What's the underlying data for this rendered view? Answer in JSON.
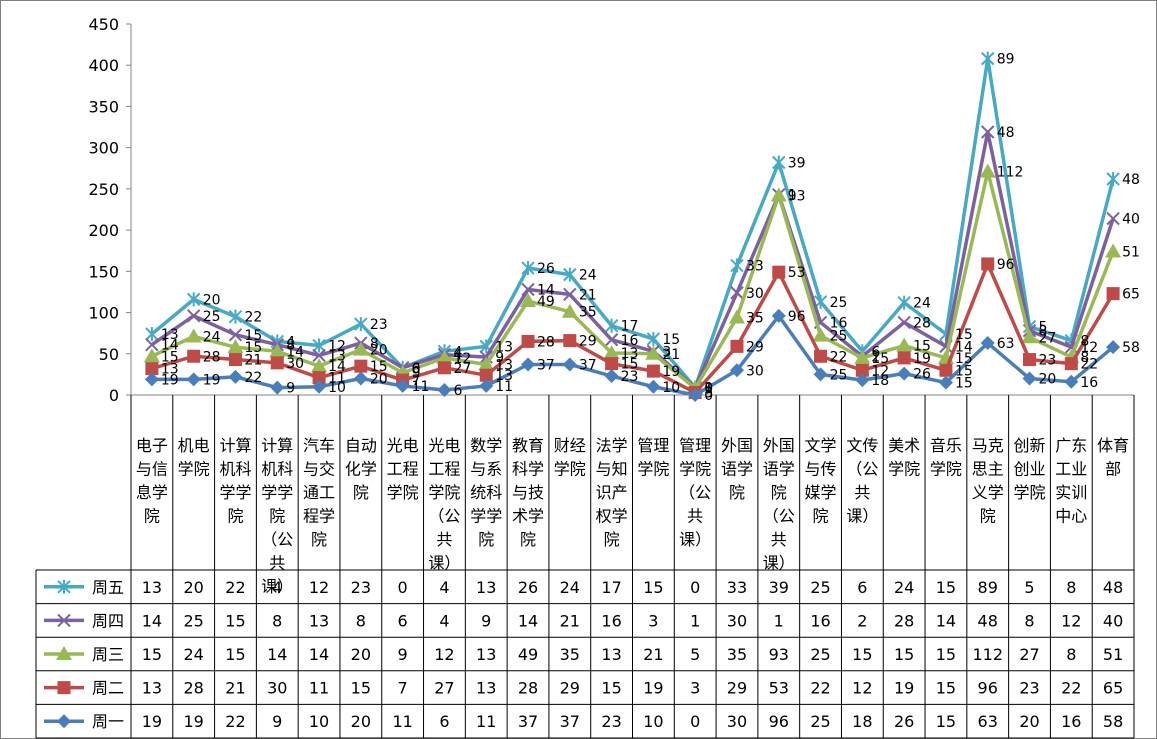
{
  "chart_data": {
    "type": "line",
    "stacked": true,
    "ylim": [
      0,
      450
    ],
    "yticks": [
      0,
      50,
      100,
      150,
      200,
      250,
      300,
      350,
      400,
      450
    ],
    "grid": false,
    "legend": "data table (left column)",
    "categories": [
      "电子与信息学院",
      "机电学院",
      "计算机科学学院",
      "计算机科学学院（公共课）",
      "汽车与交通工程学院",
      "自动化学院",
      "光电工程学院",
      "光电工程学院（公共课）",
      "数学与系统科学学院",
      "教育科学与技术学院",
      "财经学院",
      "法学与知识产权学院",
      "管理学院",
      "管理学院（公共课）",
      "外国语学院",
      "外国语学院（公共课）",
      "文学与传媒学院",
      "文传（公共课）",
      "美术学院",
      "音乐学院",
      "马克思主义学院",
      "创新创业学院",
      "广东工业实训中心",
      "体育部"
    ],
    "series": [
      {
        "name": "周一",
        "color": "#4a7ebb",
        "marker": "diamond",
        "values": [
          19,
          19,
          22,
          9,
          10,
          20,
          11,
          6,
          11,
          37,
          37,
          23,
          10,
          0,
          30,
          96,
          25,
          18,
          26,
          15,
          63,
          20,
          16,
          58
        ]
      },
      {
        "name": "周二",
        "color": "#be4b48",
        "marker": "square",
        "values": [
          13,
          28,
          21,
          30,
          11,
          15,
          7,
          27,
          13,
          28,
          29,
          15,
          19,
          3,
          29,
          53,
          22,
          12,
          19,
          15,
          96,
          23,
          22,
          65
        ]
      },
      {
        "name": "周三",
        "color": "#98b954",
        "marker": "triangle",
        "values": [
          15,
          24,
          15,
          14,
          14,
          20,
          9,
          12,
          13,
          49,
          35,
          13,
          21,
          5,
          35,
          93,
          25,
          15,
          15,
          15,
          112,
          27,
          8,
          51
        ]
      },
      {
        "name": "周四",
        "color": "#7d60a0",
        "marker": "x",
        "values": [
          14,
          25,
          15,
          8,
          13,
          8,
          6,
          4,
          9,
          14,
          21,
          16,
          3,
          1,
          30,
          1,
          16,
          2,
          28,
          14,
          48,
          8,
          12,
          40
        ]
      },
      {
        "name": "周五",
        "color": "#46aac5",
        "marker": "star",
        "values": [
          13,
          20,
          22,
          4,
          12,
          23,
          0,
          4,
          13,
          26,
          24,
          17,
          15,
          0,
          33,
          39,
          25,
          6,
          24,
          15,
          89,
          5,
          8,
          48
        ]
      }
    ]
  }
}
